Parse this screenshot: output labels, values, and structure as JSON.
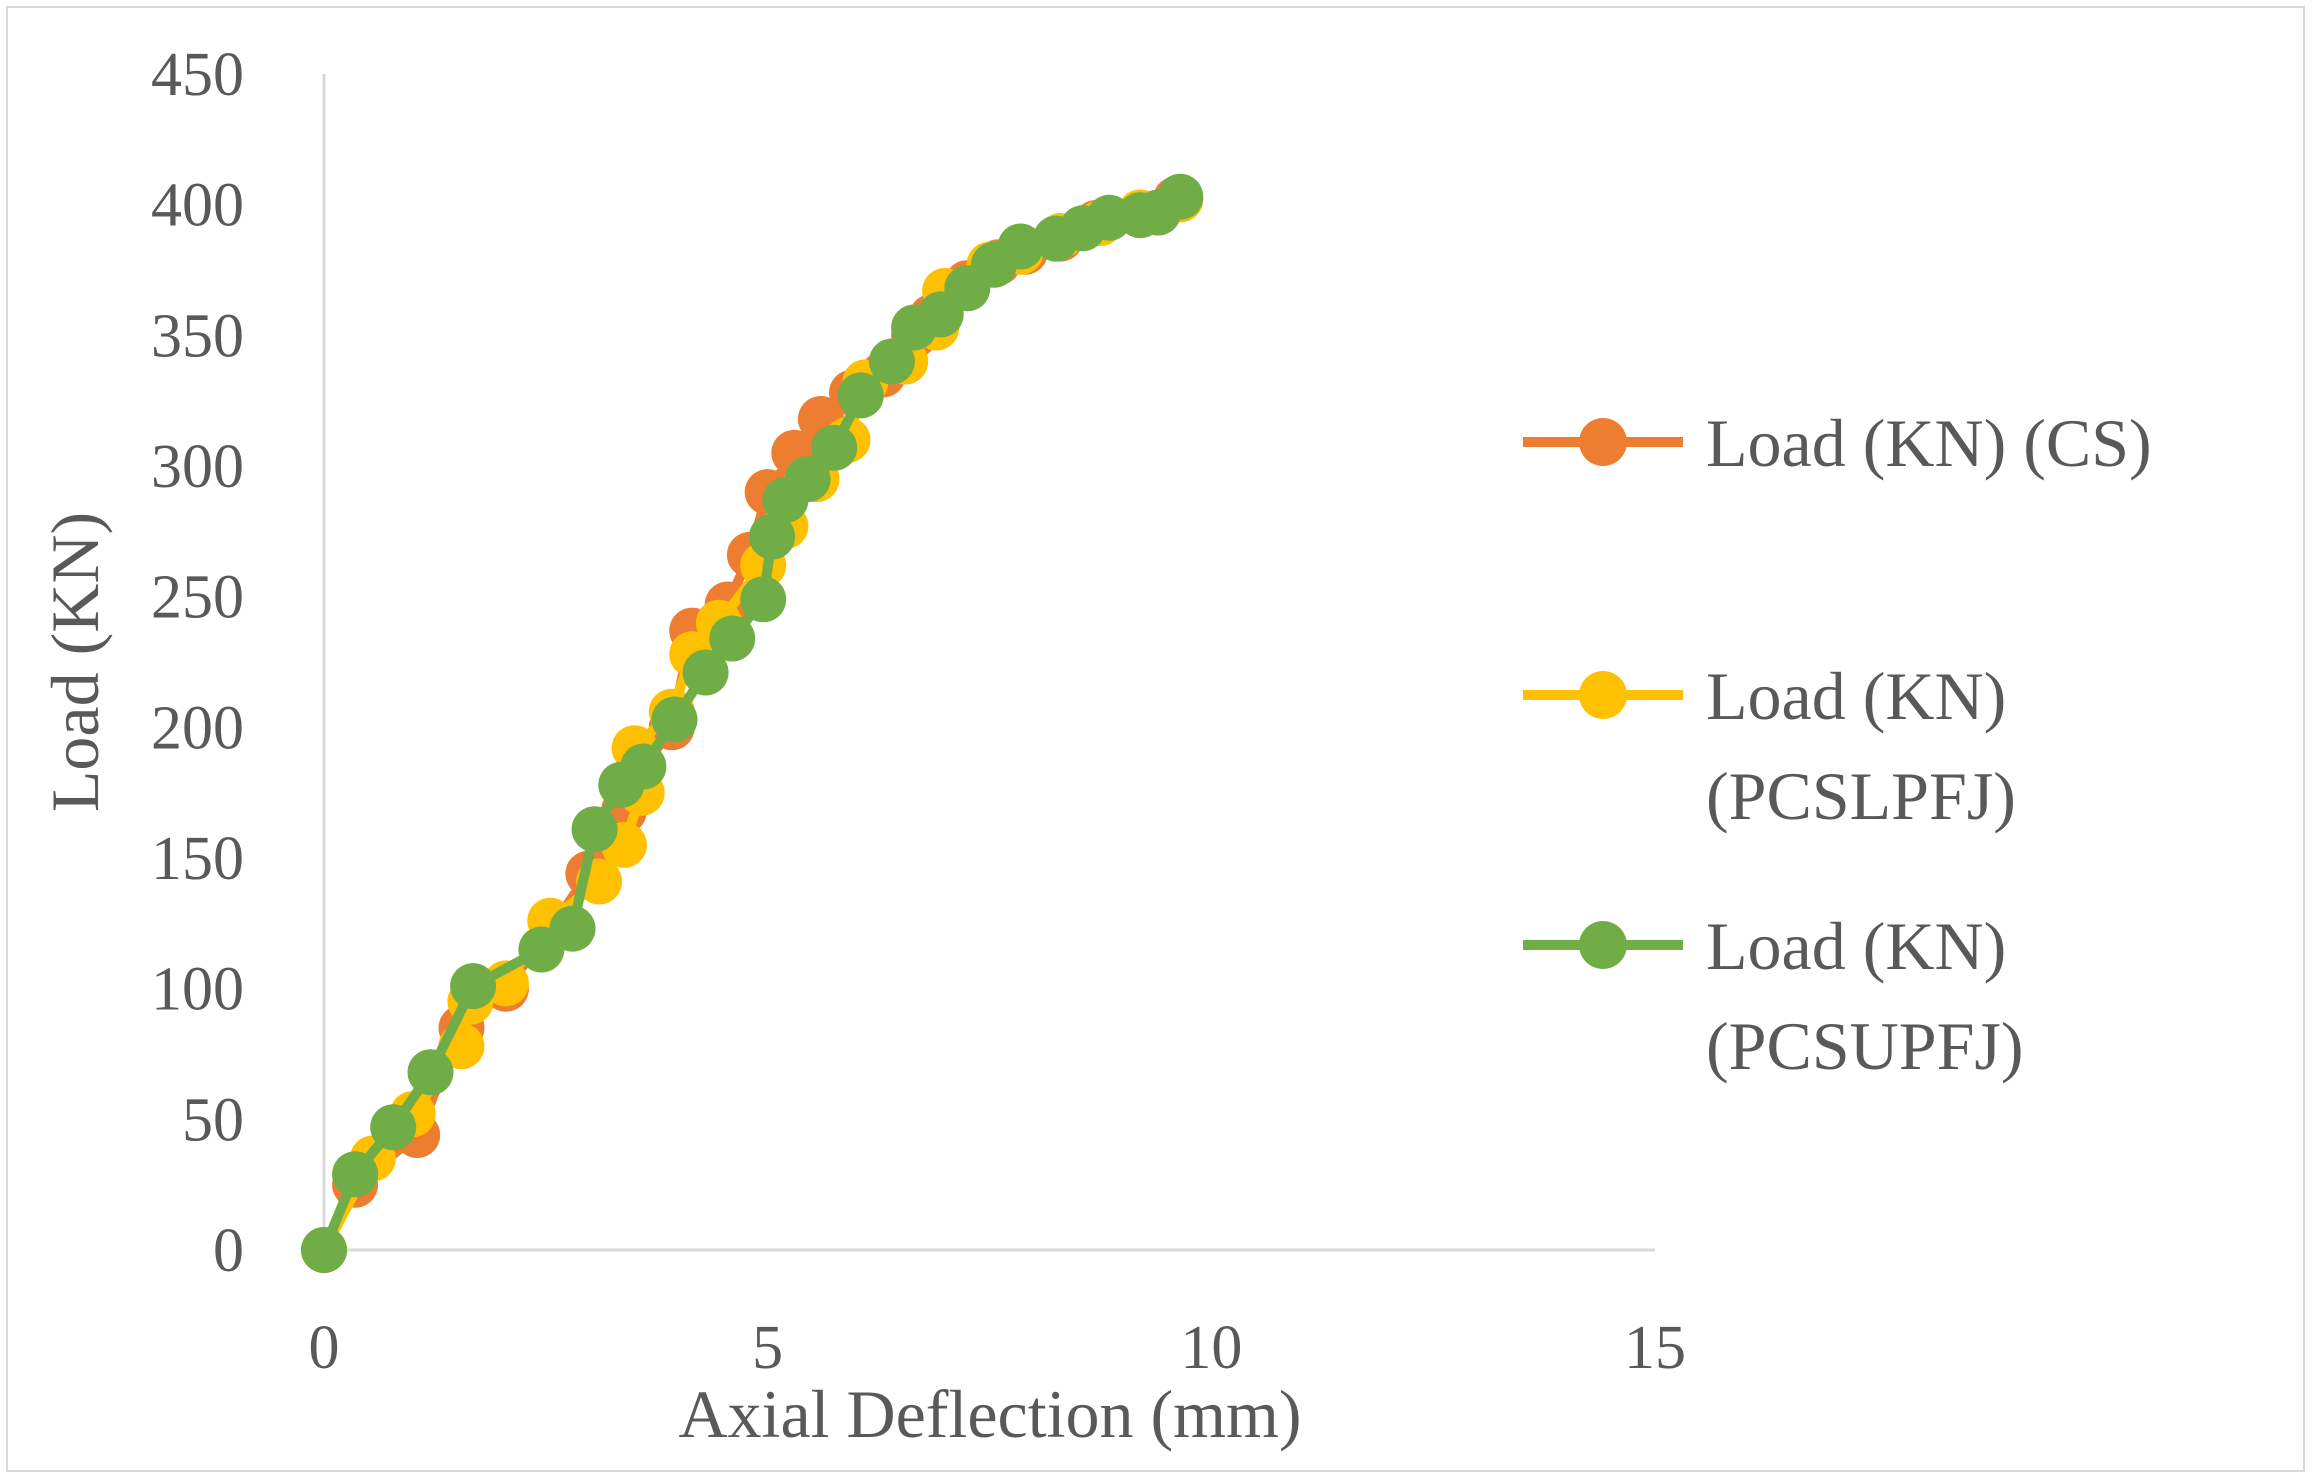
{
  "chart_data": {
    "type": "scatter",
    "title": "",
    "xlabel": "Axial Deflection (mm)",
    "ylabel": "Load (KN)",
    "xlim": [
      0,
      15
    ],
    "ylim": [
      0,
      450
    ],
    "xticks": [
      "0",
      "5",
      "10",
      "15"
    ],
    "yticks": [
      "0",
      "50",
      "100",
      "150",
      "200",
      "250",
      "300",
      "350",
      "400",
      "450"
    ],
    "legend_position": "right",
    "series": [
      {
        "name": "Load (KN) (CS)",
        "legend_lines": [
          "Load (KN) (CS)"
        ],
        "color": "#ED7D31",
        "points": [
          [
            0,
            0
          ],
          [
            0.35,
            25
          ],
          [
            1.05,
            44
          ],
          [
            1.55,
            85
          ],
          [
            1.7,
            98
          ],
          [
            2.05,
            100
          ],
          [
            2.6,
            125
          ],
          [
            2.98,
            144
          ],
          [
            3.38,
            168
          ],
          [
            3.55,
            182
          ],
          [
            3.92,
            200
          ],
          [
            4.15,
            237
          ],
          [
            4.55,
            247
          ],
          [
            4.8,
            266
          ],
          [
            5.0,
            290
          ],
          [
            5.3,
            305
          ],
          [
            5.6,
            318
          ],
          [
            5.95,
            328
          ],
          [
            6.3,
            335
          ],
          [
            6.65,
            350
          ],
          [
            6.85,
            357
          ],
          [
            7.25,
            370
          ],
          [
            7.6,
            378
          ],
          [
            7.9,
            382
          ],
          [
            8.3,
            387
          ],
          [
            8.7,
            393
          ],
          [
            9.2,
            396
          ],
          [
            9.6,
            402
          ]
        ]
      },
      {
        "name": "Load (KN) (PCSLPFJ)",
        "legend_lines": [
          "Load (KN)",
          "(PCSLPFJ)"
        ],
        "color": "#FFC000",
        "points": [
          [
            0,
            0
          ],
          [
            0.55,
            35
          ],
          [
            1.0,
            52
          ],
          [
            1.55,
            78
          ],
          [
            1.65,
            95
          ],
          [
            2.05,
            102
          ],
          [
            2.55,
            126
          ],
          [
            3.1,
            141
          ],
          [
            3.38,
            155
          ],
          [
            3.58,
            175
          ],
          [
            3.5,
            192
          ],
          [
            3.92,
            206
          ],
          [
            4.15,
            228
          ],
          [
            4.45,
            240
          ],
          [
            4.95,
            262
          ],
          [
            5.2,
            277
          ],
          [
            5.55,
            295
          ],
          [
            5.9,
            310
          ],
          [
            6.1,
            332
          ],
          [
            6.55,
            340
          ],
          [
            6.9,
            353
          ],
          [
            7.0,
            367
          ],
          [
            7.5,
            377
          ],
          [
            7.85,
            382
          ],
          [
            8.3,
            388
          ],
          [
            8.75,
            393
          ],
          [
            9.2,
            397
          ],
          [
            9.65,
            402
          ]
        ]
      },
      {
        "name": "Load (KN) (PCSUPFJ)",
        "legend_lines": [
          "Load (KN)",
          "(PCSUPFJ)"
        ],
        "color": "#70AD47",
        "points": [
          [
            0,
            0
          ],
          [
            0.35,
            29
          ],
          [
            0.78,
            47
          ],
          [
            1.2,
            68
          ],
          [
            1.68,
            101
          ],
          [
            2.45,
            115
          ],
          [
            2.8,
            123
          ],
          [
            3.05,
            161
          ],
          [
            3.35,
            178
          ],
          [
            3.6,
            185
          ],
          [
            3.95,
            203
          ],
          [
            4.3,
            221
          ],
          [
            4.6,
            234
          ],
          [
            4.95,
            249
          ],
          [
            5.05,
            273
          ],
          [
            5.2,
            287
          ],
          [
            5.45,
            295
          ],
          [
            5.75,
            307
          ],
          [
            6.05,
            327
          ],
          [
            6.4,
            340
          ],
          [
            6.65,
            353
          ],
          [
            6.95,
            358
          ],
          [
            7.25,
            368
          ],
          [
            7.55,
            377
          ],
          [
            7.85,
            384
          ],
          [
            8.25,
            387
          ],
          [
            8.55,
            391
          ],
          [
            8.85,
            395
          ],
          [
            9.2,
            396
          ],
          [
            9.4,
            397
          ],
          [
            9.65,
            403
          ]
        ]
      }
    ]
  }
}
